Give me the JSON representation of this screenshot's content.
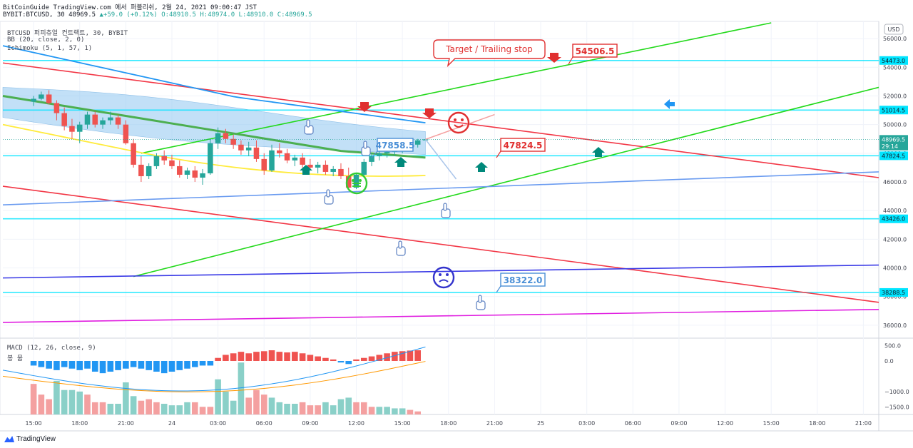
{
  "header": {
    "line1": "BitCoinGuide TradingView.com 에서 퍼블리쉬, 2월 24, 2021 09:00:47 JST",
    "line2_symbol": "BYBIT:BTCUSD, 30",
    "line2_last": "48969.5",
    "line2_change": "+59.0 (+0.12%)",
    "line2_ohlc": "O:48910.5 H:48974.0 L:48910.0 C:48969.5"
  },
  "legend": {
    "symbol": "BTCUSD 퍼피츄얼 컨트랙트, 30, BYBIT",
    "bb": "BB (20, close, 2, 0)",
    "ichimoku": "Ichimoku (5, 1, 57, 1)",
    "macd": "MACD (12, 26, close, 9)",
    "macd_sub": "봉 뭅"
  },
  "branding": {
    "label": "TradingView"
  },
  "annotations": {
    "callout": "Target / Trailing stop",
    "label_54506": "54506.5",
    "label_47824": "47824.5",
    "label_47858": "47858.5",
    "label_38322": "38322.0"
  },
  "chart_data": {
    "type": "candlestick",
    "symbol": "BYBIT:BTCUSD",
    "interval": "30",
    "currency_button": "USD",
    "y_axis": {
      "ticks": [
        36000,
        38000,
        40000,
        42000,
        44000,
        46000,
        48000,
        50000,
        52000,
        54000,
        56000
      ],
      "tick_labels": [
        "36000.0",
        "38000.0",
        "40000.0",
        "42000.0",
        "44000.0",
        "46000.0",
        "48000.0",
        "50000.0",
        "52000.0",
        "54000.0",
        "56000.0"
      ],
      "range": [
        35200,
        57200
      ]
    },
    "x_axis": {
      "tick_labels": [
        "12:00",
        "15:00",
        "18:00",
        "21:00",
        "24",
        "03:00",
        "06:00",
        "09:00",
        "12:00",
        "15:00",
        "18:00",
        "21:00",
        "25",
        "03:00",
        "06:00",
        "09:00",
        "12:00",
        "15:00",
        "18:00",
        "21:00"
      ],
      "bar_index_range": [
        -4,
        110
      ]
    },
    "price_labels": [
      {
        "value": 54473.0,
        "text": "54473.0",
        "kind": "level"
      },
      {
        "value": 51014.5,
        "text": "51014.5",
        "kind": "level"
      },
      {
        "value": 48969.5,
        "text": "48969.5",
        "kind": "last"
      },
      {
        "value": 48500,
        "text": "29:14",
        "kind": "timer"
      },
      {
        "value": 47824.5,
        "text": "47824.5",
        "kind": "level"
      },
      {
        "value": 43426.0,
        "text": "43426.0",
        "kind": "level"
      },
      {
        "value": 38288.5,
        "text": "38288.5",
        "kind": "level"
      }
    ],
    "horizontal_levels": [
      54473.0,
      51014.5,
      47824.5,
      43426.0,
      38288.5
    ],
    "candles": [
      [
        51600,
        52000,
        51300,
        51800
      ],
      [
        51800,
        52300,
        51700,
        52100
      ],
      [
        52100,
        52400,
        51400,
        51500
      ],
      [
        51500,
        51700,
        50300,
        50800
      ],
      [
        50800,
        51200,
        49600,
        49900
      ],
      [
        49900,
        50400,
        49000,
        49500
      ],
      [
        49500,
        50200,
        48700,
        50000
      ],
      [
        50000,
        50900,
        49700,
        50700
      ],
      [
        50700,
        50900,
        49800,
        50000
      ],
      [
        50000,
        50500,
        49700,
        50300
      ],
      [
        50300,
        50900,
        50000,
        50500
      ],
      [
        50500,
        50700,
        49700,
        50000
      ],
      [
        50000,
        50300,
        48600,
        48700
      ],
      [
        48700,
        49000,
        47000,
        47200
      ],
      [
        47200,
        47800,
        46000,
        46400
      ],
      [
        46400,
        47300,
        46200,
        47100
      ],
      [
        47100,
        48000,
        46900,
        47800
      ],
      [
        47800,
        48200,
        47200,
        47500
      ],
      [
        47500,
        47900,
        46900,
        47100
      ],
      [
        47100,
        47500,
        46300,
        46500
      ],
      [
        46500,
        47000,
        46200,
        46800
      ],
      [
        46800,
        47100,
        46000,
        46300
      ],
      [
        46300,
        46900,
        45800,
        46600
      ],
      [
        46600,
        49000,
        46500,
        48700
      ],
      [
        48700,
        49800,
        48300,
        49400
      ],
      [
        49400,
        49700,
        48700,
        49000
      ],
      [
        49000,
        49300,
        48300,
        48600
      ],
      [
        48600,
        48900,
        47900,
        48200
      ],
      [
        48200,
        48800,
        47800,
        48400
      ],
      [
        48400,
        48900,
        47400,
        47600
      ],
      [
        47600,
        48000,
        46500,
        46800
      ],
      [
        46800,
        48600,
        46700,
        48200
      ],
      [
        48200,
        48700,
        47700,
        48000
      ],
      [
        48000,
        48300,
        47300,
        47500
      ],
      [
        47500,
        47900,
        47100,
        47700
      ],
      [
        47700,
        48000,
        47000,
        47200
      ],
      [
        47200,
        47600,
        46800,
        47000
      ],
      [
        47000,
        47400,
        46600,
        47200
      ],
      [
        47200,
        47500,
        46500,
        46700
      ],
      [
        46700,
        47100,
        46400,
        46900
      ],
      [
        46900,
        47300,
        46200,
        46400
      ],
      [
        46400,
        47000,
        45400,
        45600
      ],
      [
        45600,
        46600,
        45500,
        46500
      ],
      [
        46500,
        47600,
        46400,
        47400
      ],
      [
        47400,
        48000,
        47100,
        47800
      ],
      [
        47800,
        48200,
        47500,
        48000
      ],
      [
        48000,
        48400,
        47700,
        48100
      ],
      [
        48100,
        48500,
        47800,
        48200
      ],
      [
        48200,
        48700,
        48000,
        48500
      ],
      [
        48500,
        48800,
        48300,
        48600
      ],
      [
        48600,
        49000,
        48400,
        48900
      ],
      [
        48900,
        49000,
        48900,
        48969.5
      ]
    ],
    "trendlines": [
      {
        "name": "",
        "color": "#f23645",
        "points": [
          [
            -4,
            54300
          ],
          [
            110,
            46300
          ]
        ]
      },
      {
        "name": "",
        "color": "#f23645",
        "points": [
          [
            -4,
            45700
          ],
          [
            110,
            37600
          ]
        ]
      },
      {
        "name": "",
        "color": "#22d91a",
        "points": [
          [
            14,
            48000
          ],
          [
            96,
            57100
          ]
        ]
      },
      {
        "name": "",
        "color": "#22d91a",
        "points": [
          [
            13,
            39400
          ],
          [
            110,
            52600
          ]
        ]
      },
      {
        "name": "",
        "color": "#6a9bf0",
        "points": [
          [
            -4,
            44400
          ],
          [
            110,
            46700
          ]
        ]
      },
      {
        "name": "",
        "color": "#3a3ae6",
        "points": [
          [
            -4,
            39300
          ],
          [
            110,
            40200
          ]
        ]
      },
      {
        "name": "",
        "color": "#e01ee0",
        "points": [
          [
            -4,
            36200
          ],
          [
            110,
            37100
          ]
        ]
      }
    ],
    "macd": {
      "y_ticks": [
        500,
        0,
        -1000,
        -1500
      ],
      "y_tick_labels": [
        "500.0",
        "0.0",
        "−1000.0",
        "−1500.0"
      ],
      "y_range": [
        -1750,
        700
      ],
      "top_histogram": [
        -150,
        -200,
        -250,
        -300,
        -200,
        -250,
        -300,
        -250,
        -350,
        -400,
        -350,
        -300,
        -250,
        -200,
        -250,
        -300,
        -350,
        -400,
        -350,
        -300,
        -250,
        -200,
        -150,
        -150,
        100,
        200,
        250,
        300,
        250,
        300,
        320,
        350,
        300,
        280,
        300,
        250,
        200,
        150,
        100,
        50,
        -50,
        -100,
        50,
        100,
        150,
        200,
        250,
        300,
        320,
        340,
        350
      ],
      "bottom_histogram": [
        -750,
        -1100,
        -1250,
        -650,
        -950,
        -950,
        -1000,
        -1100,
        -1350,
        -1350,
        -1400,
        -1400,
        -700,
        -1150,
        -1300,
        -1250,
        -1350,
        -1400,
        -1450,
        -1450,
        -1350,
        -1350,
        -1500,
        -1500,
        -600,
        -1000,
        -1300,
        -50,
        -1200,
        -950,
        -1100,
        -1200,
        -1350,
        -1400,
        -1400,
        -1350,
        -1450,
        -1450,
        -1350,
        -1450,
        -1250,
        -1200,
        -1350,
        -1350,
        -1500,
        -1500,
        -1500,
        -1550,
        -1550,
        -1600,
        -1650
      ]
    }
  }
}
